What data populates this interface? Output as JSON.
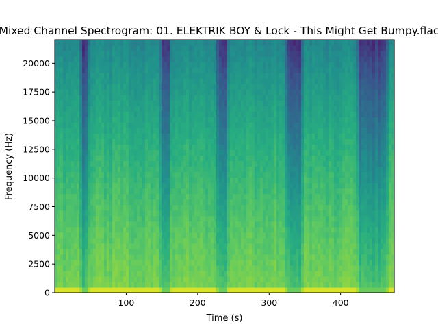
{
  "chart_data": {
    "type": "heatmap",
    "title": "Mixed Channel Spectrogram: 01. ELEKTRIK BOY & Lock - This Might Get Bumpy.flac",
    "xlabel": "Time (s)",
    "ylabel": "Frequency (Hz)",
    "xlim": [
      0,
      475
    ],
    "ylim": [
      0,
      22050
    ],
    "x_ticks": [
      100,
      200,
      300,
      400
    ],
    "y_ticks": [
      0,
      2500,
      5000,
      7500,
      10000,
      12500,
      15000,
      17500,
      20000
    ],
    "colormap": "viridis",
    "grid": false,
    "quiet_segments_s": [
      [
        38,
        46
      ],
      [
        150,
        160
      ],
      [
        228,
        240
      ],
      [
        325,
        345
      ],
      [
        425,
        465
      ]
    ],
    "intensity_note": "brighter (yellow) at low frequencies, darker (teal/blue) toward upper frequencies"
  }
}
